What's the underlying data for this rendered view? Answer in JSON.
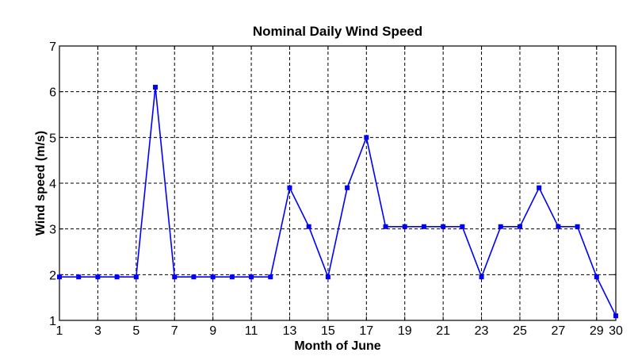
{
  "chart_data": {
    "type": "line",
    "title": "Nominal Daily Wind Speed",
    "xlabel": "Month of June",
    "ylabel": "Wind speed (m/s)",
    "xlim": [
      1,
      30
    ],
    "ylim": [
      1,
      7
    ],
    "xticks": [
      1,
      3,
      5,
      7,
      9,
      11,
      13,
      15,
      17,
      19,
      21,
      23,
      25,
      27,
      29,
      30
    ],
    "xtick_labels": [
      "1",
      "3",
      "5",
      "7",
      "9",
      "11",
      "13",
      "15",
      "17",
      "19",
      "21",
      "23",
      "25",
      "27",
      "29",
      "30"
    ],
    "yticks": [
      1,
      2,
      3,
      4,
      5,
      6,
      7
    ],
    "ytick_labels": [
      "1",
      "2",
      "3",
      "4",
      "5",
      "6",
      "7"
    ],
    "grid": true,
    "series": [
      {
        "color": "#0000ff",
        "marker": "square",
        "x": [
          1,
          2,
          3,
          4,
          5,
          6,
          7,
          8,
          9,
          10,
          11,
          12,
          13,
          14,
          15,
          16,
          17,
          18,
          19,
          20,
          21,
          22,
          23,
          24,
          25,
          26,
          27,
          28,
          29,
          30
        ],
        "y": [
          1.95,
          1.95,
          1.95,
          1.95,
          1.95,
          6.1,
          1.95,
          1.95,
          1.95,
          1.95,
          1.95,
          1.95,
          3.9,
          3.05,
          1.95,
          3.9,
          5.0,
          3.05,
          3.05,
          3.05,
          3.05,
          3.05,
          1.95,
          3.05,
          3.05,
          3.9,
          3.05,
          3.05,
          1.95,
          1.1
        ]
      }
    ]
  }
}
